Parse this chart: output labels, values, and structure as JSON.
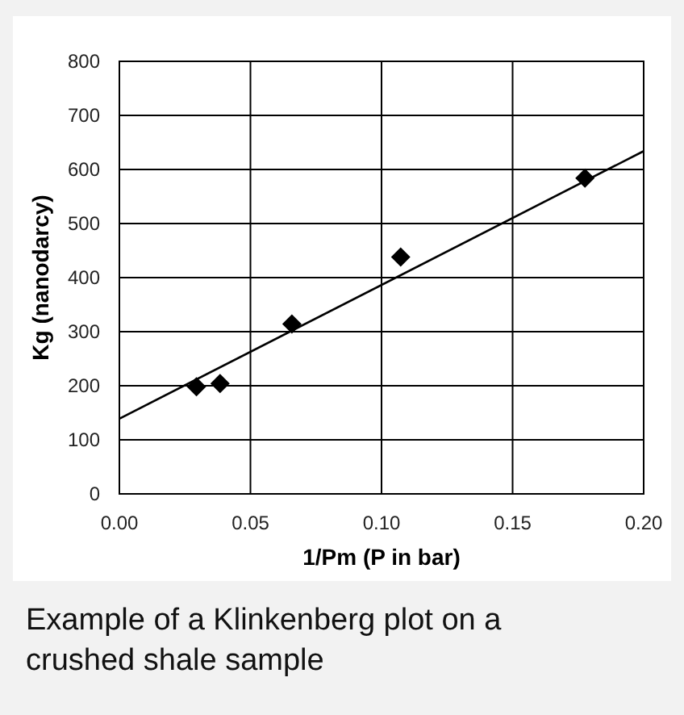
{
  "chart_data": {
    "type": "scatter",
    "xlabel": "1/Pm (P in bar)",
    "ylabel": "Kg (nanodarcy)",
    "xlim": [
      0,
      0.2
    ],
    "xticks": [
      {
        "value": 0,
        "label": "0.00"
      },
      {
        "value": 0.05,
        "label": "0.05"
      },
      {
        "value": 0.1,
        "label": "0.10"
      },
      {
        "value": 0.15,
        "label": "0.15"
      },
      {
        "value": 0.2,
        "label": "0.20"
      }
    ],
    "ylim": [
      0,
      800
    ],
    "yticks": [
      0,
      100,
      200,
      300,
      400,
      500,
      600,
      700,
      800
    ],
    "grid": true,
    "annotations": [
      "Example of a Klinkenberg plot on a crushed shale sample"
    ],
    "series": [
      {
        "color": "#000000",
        "marker": "diamond",
        "x": [
          0.0294,
          0.0384,
          0.0658,
          0.1073,
          0.1776
        ],
        "values": [
          198,
          204,
          314,
          438,
          584
        ]
      },
      {
        "type": "line",
        "color": "#000000",
        "marker": "none",
        "line_style": "solid",
        "x": [
          0,
          0.2
        ],
        "values": [
          139,
          634
        ]
      }
    ]
  }
}
